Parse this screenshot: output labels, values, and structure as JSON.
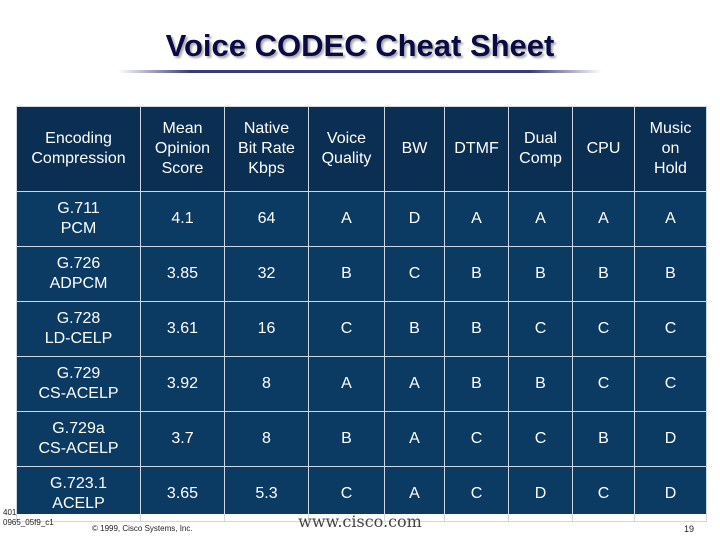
{
  "slide": {
    "title": "Voice CODEC Cheat Sheet"
  },
  "table": {
    "headers": [
      [
        "Encoding",
        "Compression"
      ],
      [
        "Mean",
        "Opinion",
        "Score"
      ],
      [
        "Native",
        "Bit Rate",
        "Kbps"
      ],
      [
        "Voice",
        "Quality"
      ],
      [
        "BW"
      ],
      [
        "DTMF"
      ],
      [
        "Dual",
        "Comp"
      ],
      [
        "CPU"
      ],
      [
        "Music",
        "on",
        "Hold"
      ]
    ],
    "rows": [
      {
        "codec": [
          "G.711",
          "PCM"
        ],
        "cells": [
          "4.1",
          "64",
          "A",
          "D",
          "A",
          "A",
          "A",
          "A"
        ]
      },
      {
        "codec": [
          "G.726",
          "ADPCM"
        ],
        "cells": [
          "3.85",
          "32",
          "B",
          "C",
          "B",
          "B",
          "B",
          "B"
        ]
      },
      {
        "codec": [
          "G.728",
          "LD-CELP"
        ],
        "cells": [
          "3.61",
          "16",
          "C",
          "B",
          "B",
          "C",
          "C",
          "C"
        ]
      },
      {
        "codec": [
          "G.729",
          "CS-ACELP"
        ],
        "cells": [
          "3.92",
          "8",
          "A",
          "A",
          "B",
          "B",
          "C",
          "C"
        ]
      },
      {
        "codec": [
          "G.729a",
          "CS-ACELP"
        ],
        "cells": [
          "3.7",
          "8",
          "B",
          "A",
          "C",
          "C",
          "B",
          "D"
        ]
      },
      {
        "codec": [
          "G.723.1",
          "ACELP"
        ],
        "cells": [
          "3.65",
          "5.3",
          "C",
          "A",
          "C",
          "D",
          "C",
          "D"
        ]
      }
    ]
  },
  "footer": {
    "slide_id_line1": "401",
    "slide_id_line2": "0965_05f9_c1",
    "copyright": "© 1999, Cisco Systems, Inc.",
    "url": "www.cisco.com",
    "page": "19"
  },
  "colors": {
    "table_bg": "#0b3a63",
    "header_bg": "#0a2f52",
    "title": "#0a0a44"
  }
}
